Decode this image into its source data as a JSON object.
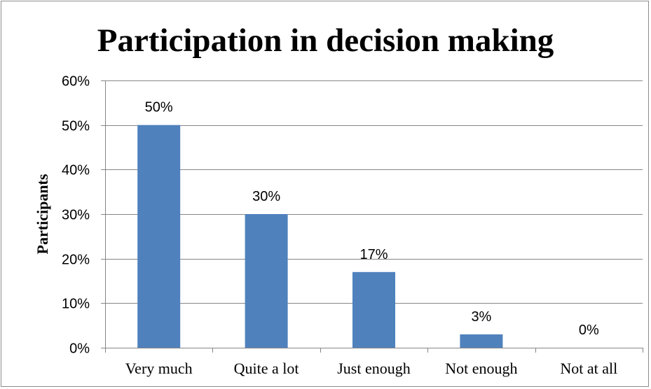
{
  "chart_data": {
    "type": "bar",
    "title": "Participation in decision making",
    "xlabel": "",
    "ylabel": "Participants",
    "categories": [
      "Very much",
      "Quite a lot",
      "Just enough",
      "Not enough",
      "Not at all"
    ],
    "values": [
      50,
      30,
      17,
      3,
      0
    ],
    "data_labels": [
      "50%",
      "30%",
      "17%",
      "3%",
      "0%"
    ],
    "ylim": [
      0,
      60
    ],
    "yticks": [
      0,
      10,
      20,
      30,
      40,
      50,
      60
    ],
    "ytick_labels": [
      "0%",
      "10%",
      "20%",
      "30%",
      "40%",
      "50%",
      "60%"
    ],
    "grid": true,
    "legend": "none",
    "bar_color": "#4f81bd",
    "grid_color": "#868686"
  }
}
